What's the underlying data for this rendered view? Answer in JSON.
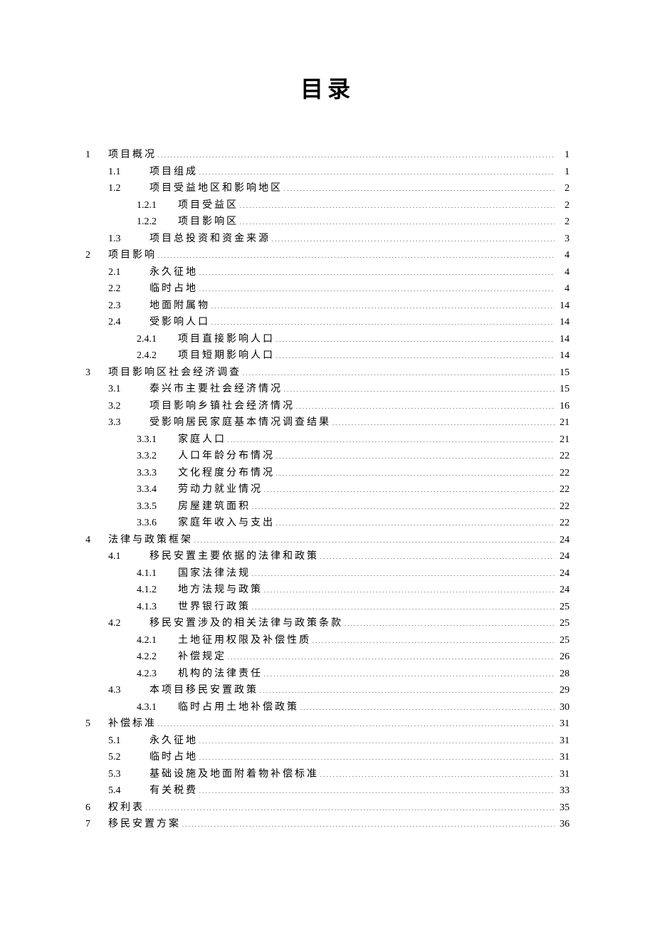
{
  "title": "目录",
  "entries": [
    {
      "level": 0,
      "num": "1",
      "label": "项目概况",
      "page": "1"
    },
    {
      "level": 1,
      "num": "1.1",
      "label": "项目组成",
      "page": "1"
    },
    {
      "level": 1,
      "num": "1.2",
      "label": "项目受益地区和影响地区",
      "page": "2"
    },
    {
      "level": 2,
      "num": "1.2.1",
      "label": "项目受益区",
      "page": "2"
    },
    {
      "level": 2,
      "num": "1.2.2",
      "label": "项目影响区",
      "page": "2"
    },
    {
      "level": 1,
      "num": "1.3",
      "label": "项目总投资和资金来源",
      "page": "3"
    },
    {
      "level": 0,
      "num": "2",
      "label": "项目影响",
      "page": "4"
    },
    {
      "level": 1,
      "num": "2.1",
      "label": "永久征地",
      "page": "4"
    },
    {
      "level": 1,
      "num": "2.2",
      "label": "临时占地",
      "page": "4"
    },
    {
      "level": 1,
      "num": "2.3",
      "label": "地面附属物",
      "page": "14"
    },
    {
      "level": 1,
      "num": "2.4",
      "label": "受影响人口",
      "page": "14"
    },
    {
      "level": 2,
      "num": "2.4.1",
      "label": "项目直接影响人口",
      "page": "14"
    },
    {
      "level": 2,
      "num": "2.4.2",
      "label": "项目短期影响人口",
      "page": "14"
    },
    {
      "level": 0,
      "num": "3",
      "label": "项目影响区社会经济调查",
      "page": "15"
    },
    {
      "level": 1,
      "num": "3.1",
      "label": "泰兴市主要社会经济情况",
      "page": "15"
    },
    {
      "level": 1,
      "num": "3.2",
      "label": "项目影响乡镇社会经济情况",
      "page": "16"
    },
    {
      "level": 1,
      "num": "3.3",
      "label": "受影响居民家庭基本情况调查结果",
      "page": "21"
    },
    {
      "level": 2,
      "num": "3.3.1",
      "label": "家庭人口",
      "page": "21"
    },
    {
      "level": 2,
      "num": "3.3.2",
      "label": "人口年龄分布情况",
      "page": "22"
    },
    {
      "level": 2,
      "num": "3.3.3",
      "label": "文化程度分布情况",
      "page": "22"
    },
    {
      "level": 2,
      "num": "3.3.4",
      "label": "劳动力就业情况",
      "page": "22"
    },
    {
      "level": 2,
      "num": "3.3.5",
      "label": "房屋建筑面积",
      "page": "22"
    },
    {
      "level": 2,
      "num": "3.3.6",
      "label": "家庭年收入与支出",
      "page": "22"
    },
    {
      "level": 0,
      "num": "4",
      "label": "法律与政策框架",
      "page": "24"
    },
    {
      "level": 1,
      "num": "4.1",
      "label": "移民安置主要依据的法律和政策",
      "page": "24"
    },
    {
      "level": 2,
      "num": "4.1.1",
      "label": "国家法律法规",
      "page": "24"
    },
    {
      "level": 2,
      "num": "4.1.2",
      "label": "地方法规与政策",
      "page": "24"
    },
    {
      "level": 2,
      "num": "4.1.3",
      "label": "世界银行政策",
      "page": "25"
    },
    {
      "level": 1,
      "num": "4.2",
      "label": "移民安置涉及的相关法律与政策条款",
      "page": "25"
    },
    {
      "level": 2,
      "num": "4.2.1",
      "label": "土地征用权限及补偿性质",
      "page": "25"
    },
    {
      "level": 2,
      "num": "4.2.2",
      "label": "补偿规定",
      "page": "26"
    },
    {
      "level": 2,
      "num": "4.2.3",
      "label": "机构的法律责任",
      "page": "28"
    },
    {
      "level": 1,
      "num": "4.3",
      "label": "本项目移民安置政策",
      "page": "29"
    },
    {
      "level": 2,
      "num": "4.3.1",
      "label": "临时占用土地补偿政策",
      "page": "30"
    },
    {
      "level": 0,
      "num": "5",
      "label": "补偿标准",
      "page": "31"
    },
    {
      "level": 1,
      "num": "5.1",
      "label": "永久征地",
      "page": "31"
    },
    {
      "level": 1,
      "num": "5.2",
      "label": "临时占地",
      "page": "31"
    },
    {
      "level": 1,
      "num": "5.3",
      "label": "基础设施及地面附着物补偿标准",
      "page": "31"
    },
    {
      "level": 1,
      "num": "5.4",
      "label": "有关税费",
      "page": "33"
    },
    {
      "level": 0,
      "num": "6",
      "label": "权利表",
      "page": "35"
    },
    {
      "level": 0,
      "num": "7",
      "label": "移民安置方案",
      "page": "36"
    }
  ]
}
